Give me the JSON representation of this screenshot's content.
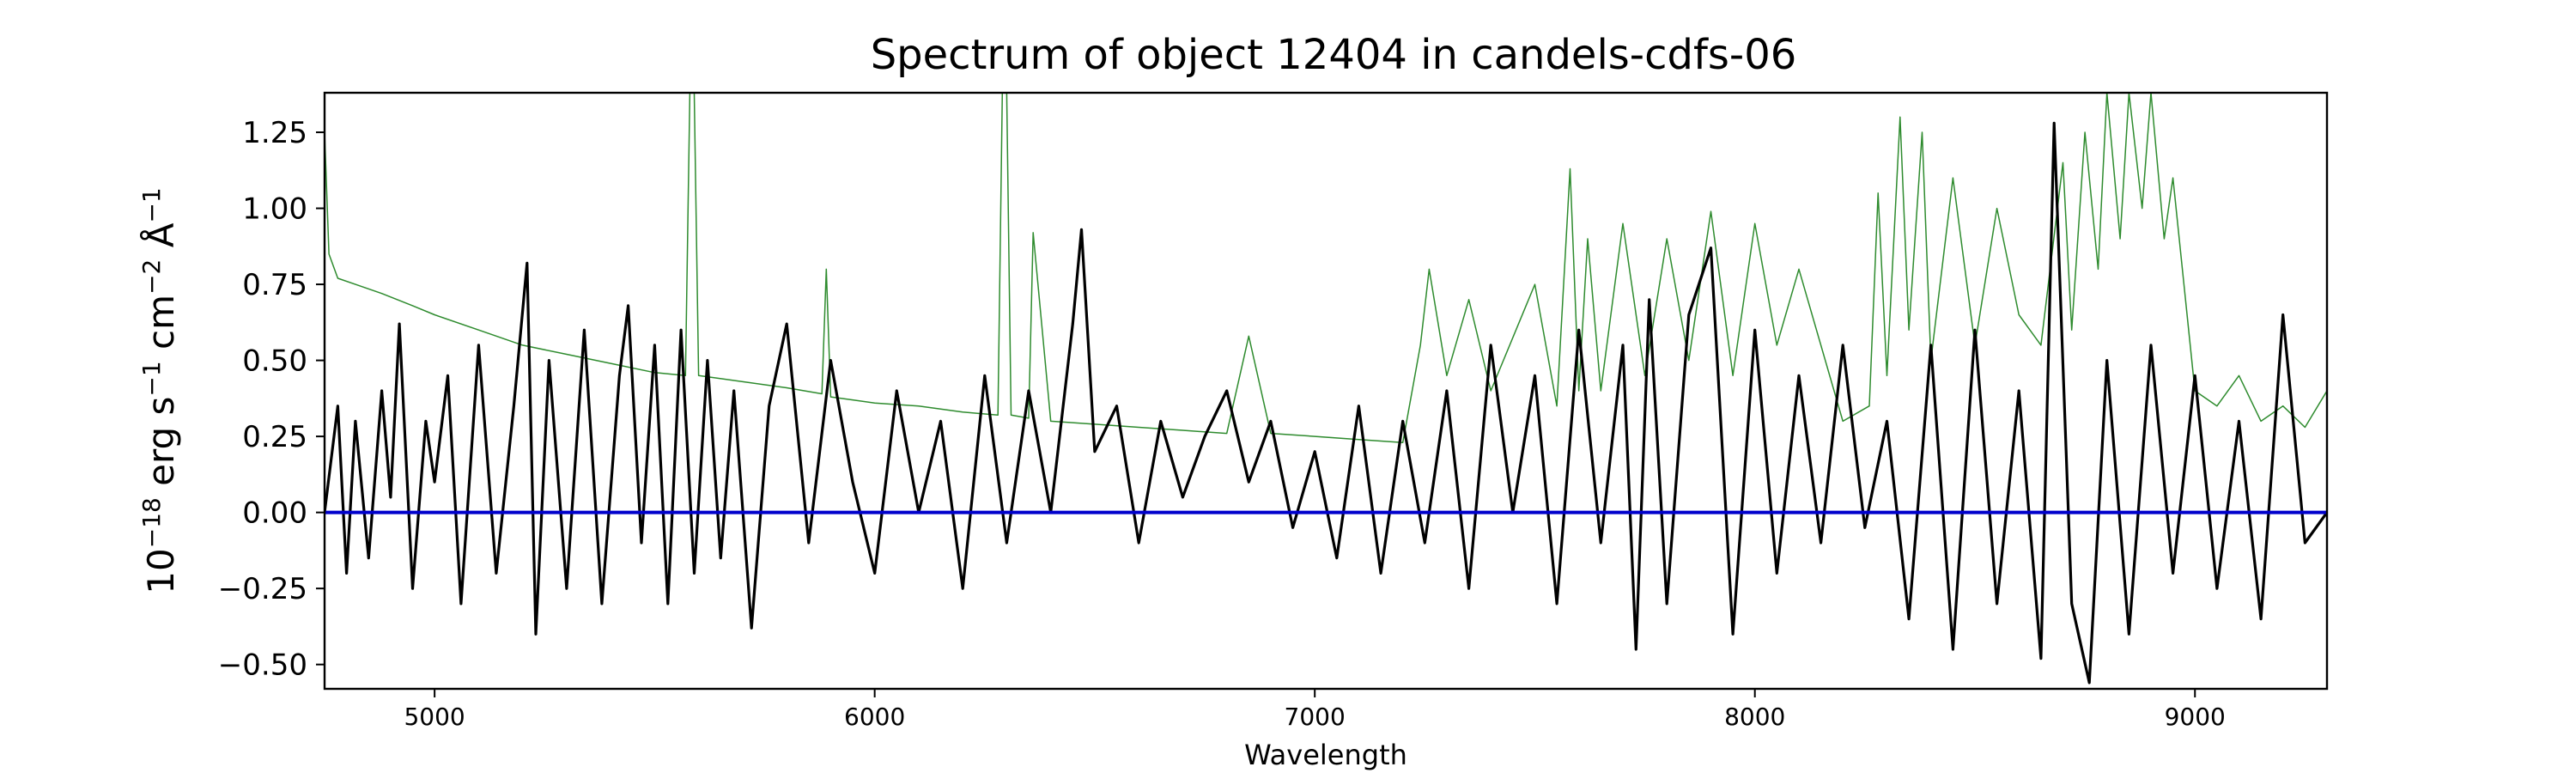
{
  "chart_data": {
    "type": "line",
    "title": "Spectrum of object 12404 in candels-cdfs-06",
    "xlabel": "Wavelength",
    "ylabel": {
      "base": "10",
      "exp_base": "−18",
      "u1": "erg s",
      "exp_u1": "−1",
      "u2": "cm",
      "exp_u2": "−2",
      "u3": "Å",
      "exp_u3": "−1"
    },
    "xlim": [
      4750,
      9300
    ],
    "ylim": [
      -0.58,
      1.38
    ],
    "x_ticks": [
      5000,
      6000,
      7000,
      8000,
      9000
    ],
    "x_tick_labels": [
      "5000",
      "6000",
      "7000",
      "8000",
      "9000"
    ],
    "y_ticks": [
      -0.5,
      -0.25,
      0.0,
      0.25,
      0.5,
      0.75,
      1.0,
      1.25
    ],
    "y_tick_labels": [
      "−0.50",
      "−0.25",
      "0.00",
      "0.25",
      "0.50",
      "0.75",
      "1.00",
      "1.25"
    ],
    "grid": false,
    "colors": {
      "flux": "#000000",
      "error": "#2e8b2e",
      "model": "#0000cc"
    },
    "series": [
      {
        "role": "flux",
        "x": [
          4750,
          4780,
          4800,
          4820,
          4850,
          4880,
          4900,
          4920,
          4950,
          4980,
          5000,
          5030,
          5060,
          5100,
          5140,
          5180,
          5210,
          5230,
          5260,
          5300,
          5340,
          5380,
          5420,
          5440,
          5470,
          5500,
          5530,
          5560,
          5590,
          5620,
          5650,
          5680,
          5720,
          5760,
          5800,
          5850,
          5900,
          5950,
          6000,
          6050,
          6100,
          6150,
          6200,
          6250,
          6300,
          6350,
          6400,
          6450,
          6470,
          6500,
          6550,
          6600,
          6650,
          6700,
          6750,
          6800,
          6850,
          6900,
          6950,
          7000,
          7050,
          7100,
          7150,
          7200,
          7250,
          7300,
          7350,
          7400,
          7450,
          7500,
          7550,
          7600,
          7650,
          7700,
          7730,
          7760,
          7800,
          7850,
          7900,
          7950,
          8000,
          8050,
          8100,
          8150,
          8200,
          8250,
          8300,
          8350,
          8400,
          8450,
          8500,
          8550,
          8600,
          8650,
          8680,
          8720,
          8760,
          8800,
          8850,
          8900,
          8950,
          9000,
          9050,
          9100,
          9150,
          9200,
          9250,
          9300
        ],
        "y": [
          0.0,
          0.35,
          -0.2,
          0.3,
          -0.15,
          0.4,
          0.05,
          0.62,
          -0.25,
          0.3,
          0.1,
          0.45,
          -0.3,
          0.55,
          -0.2,
          0.35,
          0.82,
          -0.4,
          0.5,
          -0.25,
          0.6,
          -0.3,
          0.45,
          0.68,
          -0.1,
          0.55,
          -0.3,
          0.6,
          -0.2,
          0.5,
          -0.15,
          0.4,
          -0.38,
          0.35,
          0.62,
          -0.1,
          0.5,
          0.1,
          -0.2,
          0.4,
          0.0,
          0.3,
          -0.25,
          0.45,
          -0.1,
          0.4,
          0.0,
          0.62,
          0.93,
          0.2,
          0.35,
          -0.1,
          0.3,
          0.05,
          0.25,
          0.4,
          0.1,
          0.3,
          -0.05,
          0.2,
          -0.15,
          0.35,
          -0.2,
          0.3,
          -0.1,
          0.4,
          -0.25,
          0.55,
          0.0,
          0.45,
          -0.3,
          0.6,
          -0.1,
          0.55,
          -0.45,
          0.7,
          -0.3,
          0.65,
          0.87,
          -0.4,
          0.6,
          -0.2,
          0.45,
          -0.1,
          0.55,
          -0.05,
          0.3,
          -0.35,
          0.55,
          -0.45,
          0.6,
          -0.3,
          0.4,
          -0.48,
          1.28,
          -0.3,
          -0.56,
          0.5,
          -0.4,
          0.55,
          -0.2,
          0.45,
          -0.25,
          0.3,
          -0.35,
          0.65,
          -0.1,
          0.0
        ]
      },
      {
        "role": "error",
        "x": [
          4750,
          4760,
          4780,
          4820,
          4880,
          4950,
          5000,
          5100,
          5200,
          5300,
          5400,
          5500,
          5570,
          5580,
          5590,
          5600,
          5700,
          5800,
          5880,
          5890,
          5900,
          5950,
          6000,
          6100,
          6200,
          6280,
          6290,
          6300,
          6310,
          6350,
          6360,
          6400,
          6500,
          6600,
          6700,
          6800,
          6850,
          6900,
          7000,
          7100,
          7200,
          7240,
          7260,
          7300,
          7350,
          7400,
          7500,
          7550,
          7580,
          7600,
          7620,
          7650,
          7700,
          7750,
          7800,
          7850,
          7900,
          7950,
          8000,
          8050,
          8100,
          8200,
          8260,
          8280,
          8300,
          8330,
          8350,
          8380,
          8400,
          8450,
          8500,
          8550,
          8600,
          8650,
          8700,
          8720,
          8750,
          8780,
          8800,
          8830,
          8850,
          8880,
          8900,
          8930,
          8950,
          9000,
          9050,
          9100,
          9150,
          9200,
          9250,
          9300
        ],
        "y": [
          1.25,
          0.85,
          0.77,
          0.75,
          0.72,
          0.68,
          0.65,
          0.6,
          0.55,
          0.52,
          0.49,
          0.46,
          0.45,
          1.38,
          1.38,
          0.45,
          0.43,
          0.41,
          0.39,
          0.8,
          0.38,
          0.37,
          0.36,
          0.35,
          0.33,
          0.32,
          1.38,
          1.38,
          0.32,
          0.31,
          0.92,
          0.3,
          0.29,
          0.28,
          0.27,
          0.26,
          0.58,
          0.26,
          0.25,
          0.24,
          0.23,
          0.55,
          0.8,
          0.45,
          0.7,
          0.4,
          0.75,
          0.35,
          1.13,
          0.4,
          0.9,
          0.4,
          0.95,
          0.45,
          0.9,
          0.5,
          0.99,
          0.45,
          0.95,
          0.55,
          0.8,
          0.3,
          0.35,
          1.05,
          0.45,
          1.3,
          0.6,
          1.25,
          0.5,
          1.1,
          0.55,
          1.0,
          0.65,
          0.55,
          1.15,
          0.6,
          1.25,
          0.8,
          1.38,
          0.9,
          1.38,
          1.0,
          1.38,
          0.9,
          1.1,
          0.4,
          0.35,
          0.45,
          0.3,
          0.35,
          0.28,
          0.4
        ]
      },
      {
        "role": "model",
        "x": [
          4750,
          9300
        ],
        "y": [
          0.0,
          0.0
        ]
      }
    ]
  }
}
